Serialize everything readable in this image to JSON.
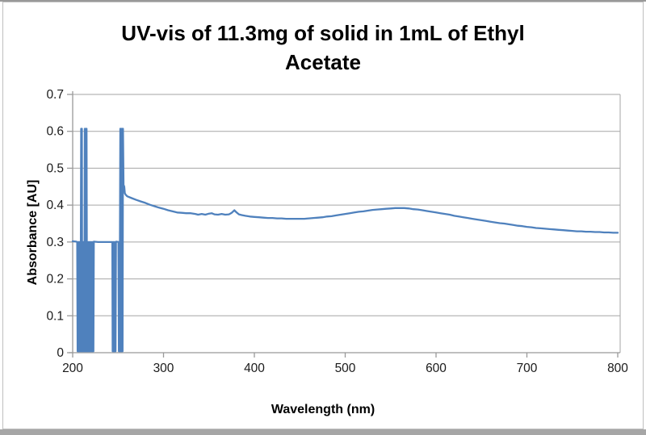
{
  "frame": {
    "background": "#ffffff",
    "border_color": "#bfbfbf",
    "top_strip_color": "#999999",
    "bottom_strip_color": "#a6a6a6"
  },
  "chart_data": {
    "type": "line",
    "title": "UV-vis of 11.3mg of solid in 1mL of Ethyl Acetate",
    "title_lines": [
      "UV-vis of 11.3mg of solid in 1mL of Ethyl",
      "Acetate"
    ],
    "xlabel": "Wavelength (nm)",
    "ylabel": "Absorbance [AU]",
    "xlim": [
      200,
      800
    ],
    "ylim": [
      0,
      0.7
    ],
    "x_ticks": [
      200,
      300,
      400,
      500,
      600,
      700,
      800
    ],
    "y_ticks": [
      0,
      0.1,
      0.2,
      0.3,
      0.4,
      0.5,
      0.6,
      0.7
    ],
    "grid": "horizontal-only",
    "legend": "none",
    "colors": {
      "line": "#4f81bd",
      "grid": "#a6a6a6",
      "axis": "#999999",
      "tick_text": "#1a1a1a"
    },
    "annotations": {
      "noise_region": "200-255 nm: detector noise, trace oscillates between 0 and 0.30 AU with narrow spikes up to ~0.61 AU",
      "broad_peak": "broad absorption maximum ~0.39 AU near 560 nm",
      "baseline_end": "flattens to ~0.33 AU at 800 nm"
    },
    "series": [
      {
        "name": "Absorbance",
        "points": [
          [
            200,
            0.302
          ],
          [
            204,
            0.301
          ],
          [
            205,
            0.3
          ],
          [
            205.4,
            0.004
          ],
          [
            205.8,
            0.3
          ],
          [
            206.2,
            0.004
          ],
          [
            206.6,
            0.3
          ],
          [
            207,
            0.004
          ],
          [
            207.4,
            0.3
          ],
          [
            207.8,
            0.004
          ],
          [
            208.2,
            0.3
          ],
          [
            208.6,
            0.004
          ],
          [
            209,
            0.3
          ],
          [
            209.3,
            0.607
          ],
          [
            209.7,
            0.004
          ],
          [
            210.1,
            0.607
          ],
          [
            210.5,
            0.004
          ],
          [
            210.9,
            0.3
          ],
          [
            211.3,
            0.004
          ],
          [
            211.7,
            0.3
          ],
          [
            212.1,
            0.004
          ],
          [
            212.5,
            0.3
          ],
          [
            212.9,
            0.004
          ],
          [
            213.3,
            0.607
          ],
          [
            213.8,
            0.004
          ],
          [
            214.3,
            0.607
          ],
          [
            214.8,
            0.004
          ],
          [
            215.3,
            0.607
          ],
          [
            215.8,
            0.004
          ],
          [
            216.3,
            0.3
          ],
          [
            216.8,
            0.004
          ],
          [
            217.3,
            0.3
          ],
          [
            217.8,
            0.004
          ],
          [
            218.3,
            0.3
          ],
          [
            218.8,
            0.004
          ],
          [
            219.3,
            0.3
          ],
          [
            219.8,
            0.004
          ],
          [
            220.3,
            0.3
          ],
          [
            220.8,
            0.004
          ],
          [
            221.3,
            0.3
          ],
          [
            221.8,
            0.004
          ],
          [
            222.3,
            0.3
          ],
          [
            222.8,
            0.004
          ],
          [
            223.3,
            0.301
          ],
          [
            228,
            0.3
          ],
          [
            234,
            0.3
          ],
          [
            240,
            0.3
          ],
          [
            243.6,
            0.3
          ],
          [
            244,
            0.004
          ],
          [
            244.4,
            0.3
          ],
          [
            244.8,
            0.004
          ],
          [
            245.2,
            0.3
          ],
          [
            245.6,
            0.004
          ],
          [
            246,
            0.3
          ],
          [
            246.4,
            0.004
          ],
          [
            246.8,
            0.3
          ],
          [
            247.2,
            0.004
          ],
          [
            247.6,
            0.3
          ],
          [
            248,
            0.301
          ],
          [
            250.4,
            0.3
          ],
          [
            250.8,
            0.004
          ],
          [
            251.2,
            0.3
          ],
          [
            251.6,
            0.004
          ],
          [
            252,
            0.3
          ],
          [
            252.4,
            0.607
          ],
          [
            252.9,
            0.004
          ],
          [
            253.4,
            0.607
          ],
          [
            253.9,
            0.004
          ],
          [
            254.4,
            0.607
          ],
          [
            254.9,
            0.004
          ],
          [
            255.4,
            0.607
          ],
          [
            256,
            0.455
          ],
          [
            256.8,
            0.45
          ],
          [
            257.4,
            0.432
          ],
          [
            258.4,
            0.428
          ],
          [
            260,
            0.424
          ],
          [
            265,
            0.419
          ],
          [
            270,
            0.414
          ],
          [
            275,
            0.41
          ],
          [
            280,
            0.406
          ],
          [
            285,
            0.401
          ],
          [
            290,
            0.397
          ],
          [
            295,
            0.393
          ],
          [
            300,
            0.39
          ],
          [
            305,
            0.386
          ],
          [
            310,
            0.383
          ],
          [
            315,
            0.38
          ],
          [
            320,
            0.379
          ],
          [
            325,
            0.378
          ],
          [
            330,
            0.378
          ],
          [
            335,
            0.376
          ],
          [
            338,
            0.374
          ],
          [
            342,
            0.376
          ],
          [
            346,
            0.374
          ],
          [
            350,
            0.377
          ],
          [
            353,
            0.378
          ],
          [
            356,
            0.375
          ],
          [
            360,
            0.374
          ],
          [
            364,
            0.376
          ],
          [
            368,
            0.374
          ],
          [
            372,
            0.375
          ],
          [
            375,
            0.379
          ],
          [
            378,
            0.386
          ],
          [
            380,
            0.381
          ],
          [
            383,
            0.375
          ],
          [
            386,
            0.373
          ],
          [
            390,
            0.371
          ],
          [
            395,
            0.369
          ],
          [
            400,
            0.368
          ],
          [
            405,
            0.367
          ],
          [
            410,
            0.366
          ],
          [
            415,
            0.365
          ],
          [
            420,
            0.365
          ],
          [
            425,
            0.364
          ],
          [
            430,
            0.364
          ],
          [
            435,
            0.363
          ],
          [
            440,
            0.363
          ],
          [
            445,
            0.363
          ],
          [
            450,
            0.363
          ],
          [
            455,
            0.363
          ],
          [
            460,
            0.364
          ],
          [
            465,
            0.365
          ],
          [
            470,
            0.366
          ],
          [
            475,
            0.367
          ],
          [
            480,
            0.369
          ],
          [
            485,
            0.37
          ],
          [
            490,
            0.372
          ],
          [
            495,
            0.374
          ],
          [
            500,
            0.376
          ],
          [
            505,
            0.378
          ],
          [
            510,
            0.38
          ],
          [
            515,
            0.382
          ],
          [
            520,
            0.383
          ],
          [
            525,
            0.385
          ],
          [
            530,
            0.387
          ],
          [
            535,
            0.388
          ],
          [
            540,
            0.389
          ],
          [
            545,
            0.39
          ],
          [
            550,
            0.391
          ],
          [
            555,
            0.392
          ],
          [
            560,
            0.392
          ],
          [
            565,
            0.392
          ],
          [
            570,
            0.391
          ],
          [
            575,
            0.389
          ],
          [
            580,
            0.388
          ],
          [
            585,
            0.386
          ],
          [
            590,
            0.384
          ],
          [
            595,
            0.382
          ],
          [
            600,
            0.38
          ],
          [
            605,
            0.378
          ],
          [
            610,
            0.376
          ],
          [
            615,
            0.374
          ],
          [
            620,
            0.371
          ],
          [
            625,
            0.369
          ],
          [
            630,
            0.367
          ],
          [
            635,
            0.365
          ],
          [
            640,
            0.363
          ],
          [
            645,
            0.361
          ],
          [
            650,
            0.359
          ],
          [
            655,
            0.357
          ],
          [
            660,
            0.355
          ],
          [
            665,
            0.353
          ],
          [
            670,
            0.351
          ],
          [
            675,
            0.35
          ],
          [
            680,
            0.348
          ],
          [
            685,
            0.346
          ],
          [
            690,
            0.344
          ],
          [
            695,
            0.343
          ],
          [
            700,
            0.341
          ],
          [
            705,
            0.34
          ],
          [
            710,
            0.338
          ],
          [
            715,
            0.337
          ],
          [
            720,
            0.336
          ],
          [
            725,
            0.335
          ],
          [
            730,
            0.334
          ],
          [
            735,
            0.333
          ],
          [
            740,
            0.332
          ],
          [
            745,
            0.331
          ],
          [
            750,
            0.33
          ],
          [
            755,
            0.329
          ],
          [
            760,
            0.329
          ],
          [
            765,
            0.328
          ],
          [
            770,
            0.328
          ],
          [
            775,
            0.327
          ],
          [
            780,
            0.327
          ],
          [
            785,
            0.326
          ],
          [
            790,
            0.326
          ],
          [
            795,
            0.325
          ],
          [
            800,
            0.325
          ]
        ]
      }
    ]
  }
}
